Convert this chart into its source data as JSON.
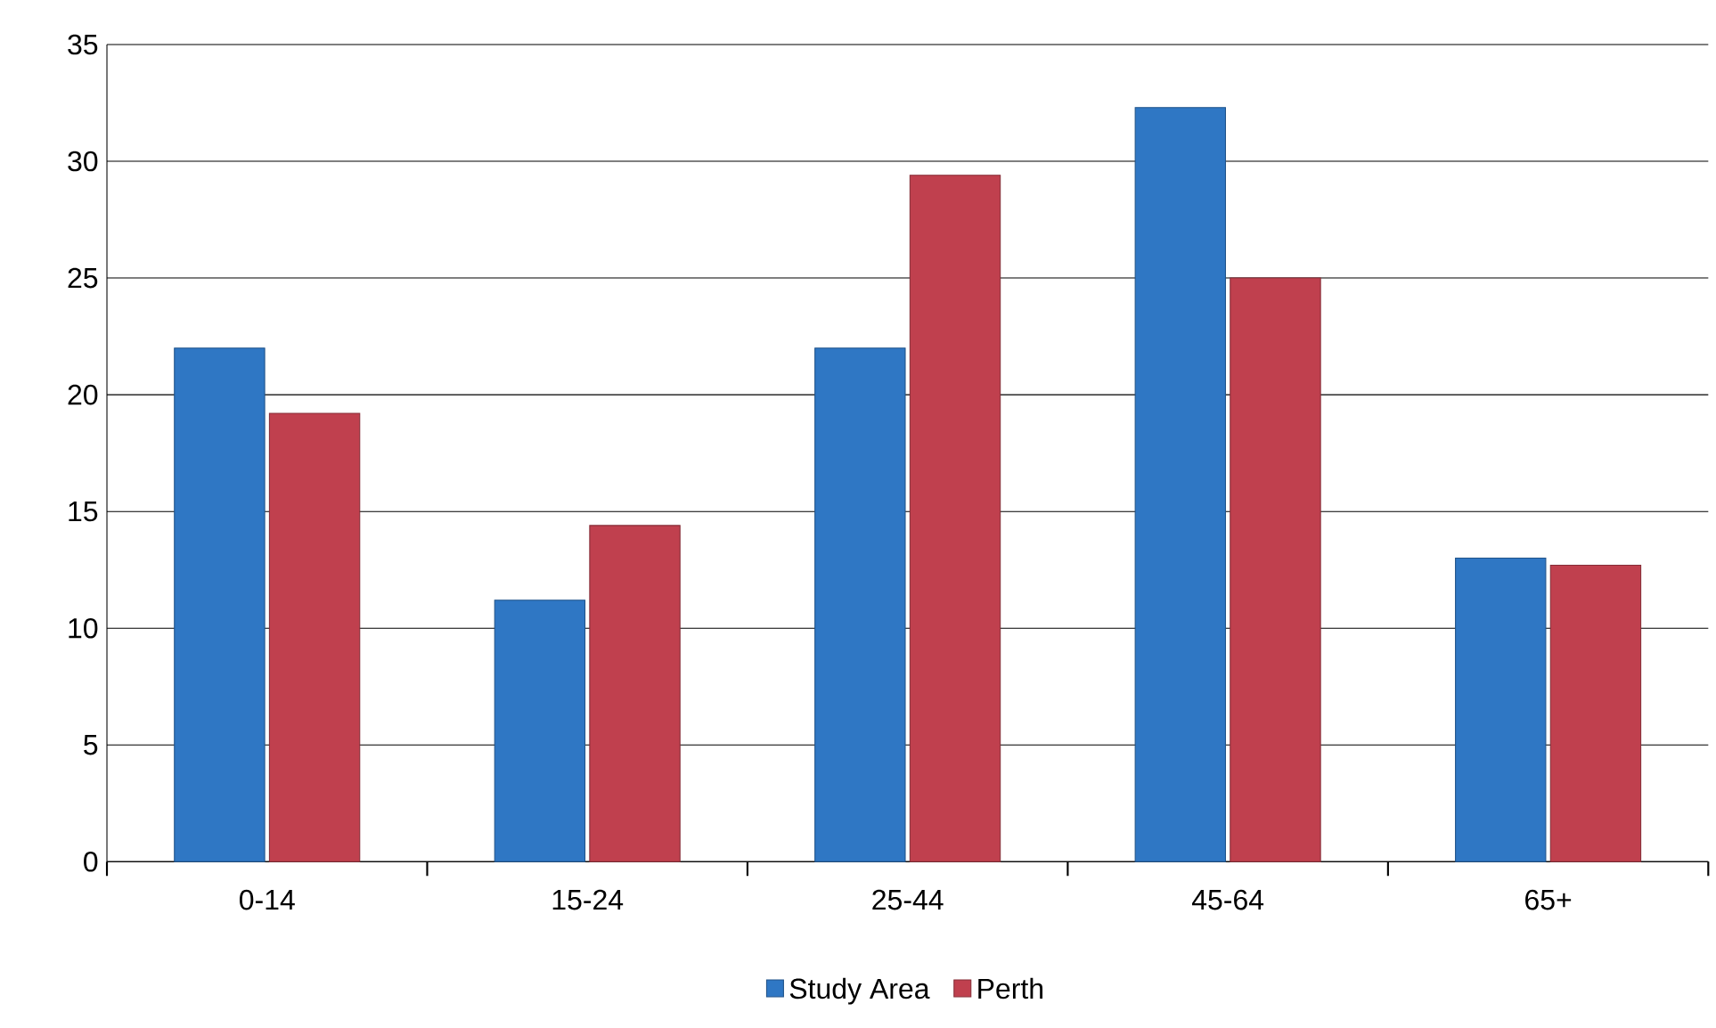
{
  "chart_data": {
    "type": "bar",
    "categories": [
      "0-14",
      "15-24",
      "25-44",
      "45-64",
      "65+"
    ],
    "series": [
      {
        "name": "Study Area",
        "color": "#2f77c4",
        "values": [
          22.0,
          11.2,
          22.0,
          32.3,
          13.0
        ]
      },
      {
        "name": "Perth",
        "color": "#c0404e",
        "values": [
          19.2,
          14.4,
          29.4,
          25.0,
          12.7
        ]
      }
    ],
    "ylim": [
      0,
      35
    ],
    "yticks": [
      0,
      5,
      10,
      15,
      20,
      25,
      30,
      35
    ],
    "grid": "y",
    "legend": "bottom"
  }
}
